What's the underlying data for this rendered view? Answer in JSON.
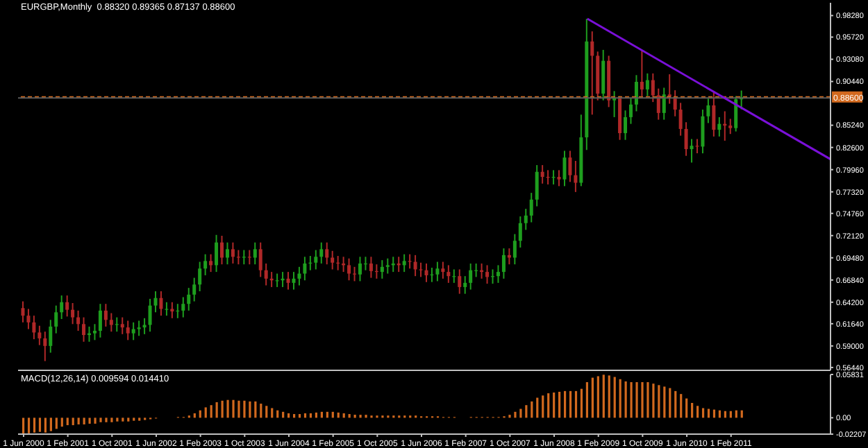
{
  "chart_data": [
    {
      "type": "candlestick",
      "title": "EURGBP,Monthly  0.88320 0.89365 0.87137 0.88600",
      "colors": [
        "#b02828",
        "#b02828",
        "#b02828",
        "#b02828",
        "#b02828",
        "#1e9e1e",
        "#1e9e1e",
        "#1e9e1e",
        "#b02828",
        "#b02828",
        "#b02828",
        "#b02828",
        "#1e9e1e",
        "#1e9e1e",
        "#1e9e1e",
        "#b02828",
        "#b02828",
        "#1e9e1e",
        "#b02828",
        "#b02828",
        "#1e9e1e",
        "#1e9e1e",
        "#1e9e1e",
        "#1e9e1e",
        "#1e9e1e",
        "#b02828",
        "#1e9e1e",
        "#b02828",
        "#1e9e1e",
        "#1e9e1e",
        "#1e9e1e",
        "#1e9e1e",
        "#1e9e1e",
        "#1e9e1e",
        "#b02828",
        "#1e9e1e",
        "#b02828",
        "#1e9e1e",
        "#b02828",
        "#b02828",
        "#1e9e1e",
        "#b02828",
        "#1e9e1e",
        "#b02828",
        "#b02828",
        "#b02828",
        "#1e9e1e",
        "#1e9e1e",
        "#b02828",
        "#1e9e1e",
        "#1e9e1e",
        "#1e9e1e",
        "#1e9e1e",
        "#1e9e1e",
        "#1e9e1e",
        "#b02828",
        "#b02828",
        "#b02828",
        "#b02828",
        "#b02828",
        "#b02828",
        "#1e9e1e",
        "#1e9e1e",
        "#b02828",
        "#b02828",
        "#1e9e1e",
        "#1e9e1e",
        "#1e9e1e",
        "#b02828",
        "#1e9e1e",
        "#b02828",
        "#b02828",
        "#b02828",
        "#b02828",
        "#1e9e1e",
        "#1e9e1e",
        "#b02828",
        "#b02828",
        "#1e9e1e",
        "#b02828",
        "#1e9e1e",
        "#1e9e1e",
        "#1e9e1e",
        "#b02828",
        "#b02828",
        "#1e9e1e",
        "#1e9e1e",
        "#1e9e1e",
        "#b02828",
        "#1e9e1e",
        "#1e9e1e",
        "#1e9e1e",
        "#1e9e1e",
        "#1e9e1e",
        "#b02828",
        "#b02828",
        "#1e9e1e",
        "#b02828",
        "#1e9e1e",
        "#b02828",
        "#b02828",
        "#1e9e1e",
        "#1e9e1e",
        "#b02828",
        "#b02828",
        "#1e9e1e",
        "#b02828",
        "#1e9e1e",
        "#b02828",
        "#1e9e1e",
        "#1e9e1e",
        "#1e9e1e",
        "#b02828",
        "#1e9e1e",
        "#b02828",
        "#b02828",
        "#1e9e1e",
        "#b02828",
        "#b02828",
        "#b02828",
        "#b02828",
        "#1e9e1e",
        "#b02828",
        "#1e9e1e",
        "#1e9e1e",
        "#b02828",
        "#1e9e1e",
        "#b02828",
        "#b02828",
        "#1e9e1e",
        "#1e9e1e"
      ],
      "x": [
        "2000-06",
        "2000-07",
        "2000-08",
        "2000-09",
        "2000-10",
        "2000-11",
        "2000-12",
        "2001-01",
        "2001-02",
        "2001-03",
        "2001-04",
        "2001-05",
        "2001-06",
        "2001-07",
        "2001-08",
        "2001-09",
        "2001-10",
        "2001-11",
        "2001-12",
        "2002-01",
        "2002-02",
        "2002-03",
        "2002-04",
        "2002-05",
        "2002-06",
        "2002-07",
        "2002-08",
        "2002-09",
        "2002-10",
        "2002-11",
        "2002-12",
        "2003-01",
        "2003-02",
        "2003-03",
        "2003-04",
        "2003-05",
        "2003-06",
        "2003-07",
        "2003-08",
        "2003-09",
        "2003-10",
        "2003-11",
        "2003-12",
        "2004-01",
        "2004-02",
        "2004-03",
        "2004-04",
        "2004-05",
        "2004-06",
        "2004-07",
        "2004-08",
        "2004-09",
        "2004-10",
        "2004-11",
        "2004-12",
        "2005-01",
        "2005-02",
        "2005-03",
        "2005-04",
        "2005-05",
        "2005-06",
        "2005-07",
        "2005-08",
        "2005-09",
        "2005-10",
        "2005-11",
        "2005-12",
        "2006-01",
        "2006-02",
        "2006-03",
        "2006-04",
        "2006-05",
        "2006-06",
        "2006-07",
        "2006-08",
        "2006-09",
        "2006-10",
        "2006-11",
        "2006-12",
        "2007-01",
        "2007-02",
        "2007-03",
        "2007-04",
        "2007-05",
        "2007-06",
        "2007-07",
        "2007-08",
        "2007-09",
        "2007-10",
        "2007-11",
        "2007-12",
        "2008-01",
        "2008-02",
        "2008-03",
        "2008-04",
        "2008-05",
        "2008-06",
        "2008-07",
        "2008-08",
        "2008-09",
        "2008-10",
        "2008-11",
        "2008-12",
        "2009-01",
        "2009-02",
        "2009-03",
        "2009-04",
        "2009-05",
        "2009-06",
        "2009-07",
        "2009-08",
        "2009-09",
        "2009-10",
        "2009-11",
        "2009-12",
        "2010-01",
        "2010-02",
        "2010-03",
        "2010-04",
        "2010-05",
        "2010-06",
        "2010-07",
        "2010-08",
        "2010-09",
        "2010-10",
        "2010-11",
        "2010-12",
        "2011-01",
        "2011-02",
        "2011-03",
        "2011-04"
      ],
      "ohlc": [
        [
          0.635,
          0.643,
          0.618,
          0.626
        ],
        [
          0.626,
          0.634,
          0.61,
          0.618
        ],
        [
          0.618,
          0.626,
          0.598,
          0.606
        ],
        [
          0.606,
          0.614,
          0.591,
          0.599
        ],
        [
          0.599,
          0.607,
          0.572,
          0.59
        ],
        [
          0.59,
          0.621,
          0.582,
          0.613
        ],
        [
          0.613,
          0.638,
          0.605,
          0.63
        ],
        [
          0.63,
          0.65,
          0.622,
          0.642
        ],
        [
          0.642,
          0.65,
          0.625,
          0.633
        ],
        [
          0.633,
          0.641,
          0.616,
          0.624
        ],
        [
          0.624,
          0.632,
          0.608,
          0.616
        ],
        [
          0.616,
          0.624,
          0.595,
          0.603
        ],
        [
          0.603,
          0.613,
          0.595,
          0.605
        ],
        [
          0.605,
          0.616,
          0.597,
          0.608
        ],
        [
          0.608,
          0.64,
          0.6,
          0.632
        ],
        [
          0.632,
          0.64,
          0.613,
          0.621
        ],
        [
          0.621,
          0.629,
          0.607,
          0.615
        ],
        [
          0.615,
          0.624,
          0.607,
          0.616
        ],
        [
          0.616,
          0.624,
          0.604,
          0.612
        ],
        [
          0.612,
          0.62,
          0.597,
          0.605
        ],
        [
          0.605,
          0.618,
          0.597,
          0.61
        ],
        [
          0.61,
          0.62,
          0.602,
          0.612
        ],
        [
          0.612,
          0.623,
          0.604,
          0.615
        ],
        [
          0.615,
          0.646,
          0.607,
          0.638
        ],
        [
          0.638,
          0.655,
          0.63,
          0.647
        ],
        [
          0.647,
          0.655,
          0.626,
          0.634
        ],
        [
          0.634,
          0.642,
          0.626,
          0.634
        ],
        [
          0.634,
          0.642,
          0.623,
          0.631
        ],
        [
          0.631,
          0.64,
          0.623,
          0.632
        ],
        [
          0.632,
          0.648,
          0.624,
          0.64
        ],
        [
          0.64,
          0.659,
          0.632,
          0.651
        ],
        [
          0.651,
          0.671,
          0.643,
          0.663
        ],
        [
          0.663,
          0.69,
          0.655,
          0.682
        ],
        [
          0.682,
          0.699,
          0.674,
          0.691
        ],
        [
          0.691,
          0.699,
          0.678,
          0.686
        ],
        [
          0.686,
          0.722,
          0.678,
          0.713
        ],
        [
          0.713,
          0.721,
          0.687,
          0.695
        ],
        [
          0.695,
          0.713,
          0.687,
          0.705
        ],
        [
          0.705,
          0.713,
          0.688,
          0.696
        ],
        [
          0.696,
          0.704,
          0.687,
          0.695
        ],
        [
          0.695,
          0.704,
          0.687,
          0.696
        ],
        [
          0.696,
          0.704,
          0.687,
          0.695
        ],
        [
          0.695,
          0.713,
          0.687,
          0.705
        ],
        [
          0.705,
          0.713,
          0.672,
          0.68
        ],
        [
          0.68,
          0.688,
          0.662,
          0.67
        ],
        [
          0.67,
          0.678,
          0.66,
          0.668
        ],
        [
          0.668,
          0.676,
          0.66,
          0.668
        ],
        [
          0.668,
          0.678,
          0.66,
          0.67
        ],
        [
          0.67,
          0.678,
          0.657,
          0.665
        ],
        [
          0.665,
          0.678,
          0.657,
          0.67
        ],
        [
          0.67,
          0.684,
          0.662,
          0.676
        ],
        [
          0.676,
          0.696,
          0.668,
          0.688
        ],
        [
          0.688,
          0.697,
          0.68,
          0.689
        ],
        [
          0.689,
          0.704,
          0.681,
          0.696
        ],
        [
          0.696,
          0.713,
          0.688,
          0.705
        ],
        [
          0.705,
          0.713,
          0.687,
          0.695
        ],
        [
          0.695,
          0.703,
          0.681,
          0.689
        ],
        [
          0.689,
          0.697,
          0.68,
          0.688
        ],
        [
          0.688,
          0.696,
          0.678,
          0.686
        ],
        [
          0.686,
          0.694,
          0.668,
          0.676
        ],
        [
          0.676,
          0.684,
          0.667,
          0.675
        ],
        [
          0.675,
          0.696,
          0.667,
          0.688
        ],
        [
          0.688,
          0.696,
          0.68,
          0.688
        ],
        [
          0.688,
          0.696,
          0.671,
          0.679
        ],
        [
          0.679,
          0.687,
          0.67,
          0.678
        ],
        [
          0.678,
          0.692,
          0.67,
          0.684
        ],
        [
          0.684,
          0.694,
          0.676,
          0.686
        ],
        [
          0.686,
          0.696,
          0.678,
          0.688
        ],
        [
          0.688,
          0.696,
          0.678,
          0.686
        ],
        [
          0.686,
          0.699,
          0.678,
          0.691
        ],
        [
          0.691,
          0.699,
          0.682,
          0.69
        ],
        [
          0.69,
          0.698,
          0.673,
          0.681
        ],
        [
          0.681,
          0.689,
          0.672,
          0.68
        ],
        [
          0.68,
          0.688,
          0.666,
          0.674
        ],
        [
          0.674,
          0.683,
          0.666,
          0.675
        ],
        [
          0.675,
          0.69,
          0.667,
          0.682
        ],
        [
          0.682,
          0.69,
          0.67,
          0.678
        ],
        [
          0.678,
          0.686,
          0.665,
          0.673
        ],
        [
          0.673,
          0.681,
          0.665,
          0.673
        ],
        [
          0.673,
          0.681,
          0.652,
          0.66
        ],
        [
          0.66,
          0.673,
          0.652,
          0.665
        ],
        [
          0.665,
          0.688,
          0.657,
          0.68
        ],
        [
          0.68,
          0.688,
          0.672,
          0.68
        ],
        [
          0.68,
          0.688,
          0.67,
          0.678
        ],
        [
          0.678,
          0.686,
          0.664,
          0.672
        ],
        [
          0.672,
          0.681,
          0.664,
          0.673
        ],
        [
          0.673,
          0.686,
          0.665,
          0.678
        ],
        [
          0.678,
          0.706,
          0.67,
          0.698
        ],
        [
          0.698,
          0.706,
          0.687,
          0.695
        ],
        [
          0.695,
          0.723,
          0.687,
          0.715
        ],
        [
          0.715,
          0.744,
          0.707,
          0.736
        ],
        [
          0.736,
          0.753,
          0.728,
          0.745
        ],
        [
          0.745,
          0.772,
          0.737,
          0.764
        ],
        [
          0.764,
          0.805,
          0.756,
          0.797
        ],
        [
          0.797,
          0.805,
          0.783,
          0.791
        ],
        [
          0.791,
          0.799,
          0.782,
          0.79
        ],
        [
          0.79,
          0.799,
          0.782,
          0.791
        ],
        [
          0.791,
          0.799,
          0.78,
          0.788
        ],
        [
          0.788,
          0.822,
          0.78,
          0.814
        ],
        [
          0.814,
          0.822,
          0.785,
          0.793
        ],
        [
          0.793,
          0.81,
          0.773,
          0.784
        ],
        [
          0.784,
          0.865,
          0.78,
          0.838
        ],
        [
          0.838,
          0.979,
          0.823,
          0.952
        ],
        [
          0.952,
          0.964,
          0.865,
          0.935
        ],
        [
          0.935,
          0.94,
          0.882,
          0.89
        ],
        [
          0.89,
          0.942,
          0.882,
          0.929
        ],
        [
          0.929,
          0.935,
          0.874,
          0.882
        ],
        [
          0.882,
          0.893,
          0.862,
          0.885
        ],
        [
          0.885,
          0.887,
          0.835,
          0.843
        ],
        [
          0.843,
          0.87,
          0.835,
          0.862
        ],
        [
          0.862,
          0.885,
          0.854,
          0.877
        ],
        [
          0.877,
          0.912,
          0.869,
          0.904
        ],
        [
          0.904,
          0.942,
          0.887,
          0.895
        ],
        [
          0.895,
          0.914,
          0.887,
          0.906
        ],
        [
          0.906,
          0.914,
          0.88,
          0.888
        ],
        [
          0.888,
          0.896,
          0.859,
          0.867
        ],
        [
          0.867,
          0.897,
          0.859,
          0.889
        ],
        [
          0.889,
          0.913,
          0.878,
          0.886
        ],
        [
          0.886,
          0.894,
          0.863,
          0.871
        ],
        [
          0.871,
          0.879,
          0.84,
          0.848
        ],
        [
          0.848,
          0.856,
          0.816,
          0.824
        ],
        [
          0.824,
          0.836,
          0.808,
          0.828
        ],
        [
          0.828,
          0.836,
          0.819,
          0.827
        ],
        [
          0.827,
          0.871,
          0.819,
          0.863
        ],
        [
          0.863,
          0.884,
          0.855,
          0.876
        ],
        [
          0.876,
          0.892,
          0.839,
          0.847
        ],
        [
          0.847,
          0.862,
          0.839,
          0.854
        ],
        [
          0.854,
          0.869,
          0.834,
          0.852
        ],
        [
          0.852,
          0.86,
          0.842,
          0.849
        ],
        [
          0.849,
          0.887,
          0.845,
          0.8832
        ],
        [
          0.8832,
          0.89365,
          0.87137,
          0.886
        ]
      ],
      "series": [
        {
          "type": "line",
          "color": "#7a10d8",
          "x": [
            "2008-12",
            "2012-08"
          ],
          "values": [
            0.979,
            0.812
          ]
        }
      ],
      "ref_lines": [
        {
          "axis": "y",
          "value": 0.886,
          "label": "0.88600",
          "color": "#d2691e",
          "line_style": "dashed"
        },
        {
          "axis": "y",
          "value": 0.8849,
          "color": "#5a5a5a",
          "line_style": "solid"
        }
      ],
      "xlim": [
        "2000-05",
        "2012-08"
      ],
      "tick_labels": "y",
      "ylim": [
        0.561,
        0.998
      ],
      "yticks": [
        {
          "value": 0.9828,
          "label": "0.98280"
        },
        {
          "value": 0.9572,
          "label": "0.95720"
        },
        {
          "value": 0.9308,
          "label": "0.93080"
        },
        {
          "value": 0.9044,
          "label": "0.90440"
        },
        {
          "value": 0.8524,
          "label": "0.85240"
        },
        {
          "value": 0.826,
          "label": "0.82600"
        },
        {
          "value": 0.7996,
          "label": "0.79960"
        },
        {
          "value": 0.7732,
          "label": "0.77320"
        },
        {
          "value": 0.7476,
          "label": "0.74760"
        },
        {
          "value": 0.7212,
          "label": "0.72120"
        },
        {
          "value": 0.6948,
          "label": "0.69480"
        },
        {
          "value": 0.6684,
          "label": "0.66840"
        },
        {
          "value": 0.642,
          "label": "0.64200"
        },
        {
          "value": 0.6164,
          "label": "0.61640"
        },
        {
          "value": 0.59,
          "label": "0.59000"
        },
        {
          "value": 0.5644,
          "label": "0.56440"
        }
      ]
    },
    {
      "type": "bar",
      "title": "MACD(12,26,14) 0.009594 0.014410",
      "color": "#d2691e",
      "x": [
        "2000-06",
        "2000-07",
        "2000-08",
        "2000-09",
        "2000-10",
        "2000-11",
        "2000-12",
        "2001-01",
        "2001-02",
        "2001-03",
        "2001-04",
        "2001-05",
        "2001-06",
        "2001-07",
        "2001-08",
        "2001-09",
        "2001-10",
        "2001-11",
        "2001-12",
        "2002-01",
        "2002-02",
        "2002-03",
        "2002-04",
        "2002-05",
        "2002-06",
        "2002-07",
        "2002-08",
        "2002-09",
        "2002-10",
        "2002-11",
        "2002-12",
        "2003-01",
        "2003-02",
        "2003-03",
        "2003-04",
        "2003-05",
        "2003-06",
        "2003-07",
        "2003-08",
        "2003-09",
        "2003-10",
        "2003-11",
        "2003-12",
        "2004-01",
        "2004-02",
        "2004-03",
        "2004-04",
        "2004-05",
        "2004-06",
        "2004-07",
        "2004-08",
        "2004-09",
        "2004-10",
        "2004-11",
        "2004-12",
        "2005-01",
        "2005-02",
        "2005-03",
        "2005-04",
        "2005-05",
        "2005-06",
        "2005-07",
        "2005-08",
        "2005-09",
        "2005-10",
        "2005-11",
        "2005-12",
        "2006-01",
        "2006-02",
        "2006-03",
        "2006-04",
        "2006-05",
        "2006-06",
        "2006-07",
        "2006-08",
        "2006-09",
        "2006-10",
        "2006-11",
        "2006-12",
        "2007-01",
        "2007-02",
        "2007-03",
        "2007-04",
        "2007-05",
        "2007-06",
        "2007-07",
        "2007-08",
        "2007-09",
        "2007-10",
        "2007-11",
        "2007-12",
        "2008-01",
        "2008-02",
        "2008-03",
        "2008-04",
        "2008-05",
        "2008-06",
        "2008-07",
        "2008-08",
        "2008-09",
        "2008-10",
        "2008-11",
        "2008-12",
        "2009-01",
        "2009-02",
        "2009-03",
        "2009-04",
        "2009-05",
        "2009-06",
        "2009-07",
        "2009-08",
        "2009-09",
        "2009-10",
        "2009-11",
        "2009-12",
        "2010-01",
        "2010-02",
        "2010-03",
        "2010-04",
        "2010-05",
        "2010-06",
        "2010-07",
        "2010-08",
        "2010-09",
        "2010-10",
        "2010-11",
        "2010-12",
        "2011-01",
        "2011-02",
        "2011-03",
        "2011-04"
      ],
      "values": [
        -0.022,
        -0.021,
        -0.02,
        -0.019,
        -0.02,
        -0.018,
        -0.015,
        -0.012,
        -0.01,
        -0.01,
        -0.009,
        -0.009,
        -0.008,
        -0.008,
        -0.006,
        -0.006,
        -0.006,
        -0.005,
        -0.005,
        -0.005,
        -0.004,
        -0.004,
        -0.003,
        -0.002,
        -0.001,
        0,
        0,
        0,
        0.001,
        0.001,
        0.003,
        0.006,
        0.01,
        0.014,
        0.017,
        0.021,
        0.023,
        0.024,
        0.024,
        0.023,
        0.023,
        0.022,
        0.022,
        0.019,
        0.016,
        0.013,
        0.01,
        0.008,
        0.006,
        0.005,
        0.005,
        0.006,
        0.006,
        0.007,
        0.008,
        0.008,
        0.008,
        0.007,
        0.006,
        0.005,
        0.004,
        0.004,
        0.004,
        0.003,
        0.003,
        0.003,
        0.003,
        0.003,
        0.003,
        0.003,
        0.003,
        0.003,
        0.002,
        0.002,
        0.002,
        0.002,
        0.001,
        0.001,
        0.001,
        0,
        0,
        0.001,
        0.001,
        0.001,
        0.001,
        0.001,
        0.001,
        0.002,
        0.004,
        0.008,
        0.012,
        0.017,
        0.022,
        0.027,
        0.03,
        0.033,
        0.034,
        0.035,
        0.036,
        0.036,
        0.036,
        0.039,
        0.048,
        0.054,
        0.056,
        0.058,
        0.057,
        0.055,
        0.052,
        0.049,
        0.048,
        0.048,
        0.048,
        0.048,
        0.046,
        0.044,
        0.042,
        0.04,
        0.036,
        0.032,
        0.026,
        0.02,
        0.016,
        0.013,
        0.012,
        0.011,
        0.01,
        0.009,
        0.009,
        0.01,
        0.01
      ],
      "xlim": [
        "2000-05",
        "2012-08"
      ],
      "xticks": [
        {
          "value": "2000-06",
          "label": "1 Jun 2000"
        },
        {
          "value": "2001-02",
          "label": "1 Feb 2001"
        },
        {
          "value": "2001-10",
          "label": "1 Oct 2001"
        },
        {
          "value": "2002-06",
          "label": "1 Jun 2002"
        },
        {
          "value": "2003-02",
          "label": "1 Feb 2003"
        },
        {
          "value": "2003-10",
          "label": "1 Oct 2003"
        },
        {
          "value": "2004-06",
          "label": "1 Jun 2004"
        },
        {
          "value": "2005-02",
          "label": "1 Feb 2005"
        },
        {
          "value": "2005-10",
          "label": "1 Oct 2005"
        },
        {
          "value": "2006-06",
          "label": "1 Jun 2006"
        },
        {
          "value": "2007-02",
          "label": "1 Feb 2007"
        },
        {
          "value": "2007-10",
          "label": "1 Oct 2007"
        },
        {
          "value": "2008-06",
          "label": "1 Jun 2008"
        },
        {
          "value": "2009-02",
          "label": "1 Feb 2009"
        },
        {
          "value": "2009-10",
          "label": "1 Oct 2009"
        },
        {
          "value": "2010-06",
          "label": "1 Jun 2010"
        },
        {
          "value": "2011-02",
          "label": "1 Feb 2011"
        }
      ],
      "ylim": [
        -0.02207,
        0.05831
      ],
      "yticks": [
        {
          "value": 0.05831,
          "label": "0.05831"
        },
        {
          "value": 0,
          "label": "0.00"
        },
        {
          "value": -0.02207,
          "label": "-0.02207"
        }
      ]
    }
  ]
}
